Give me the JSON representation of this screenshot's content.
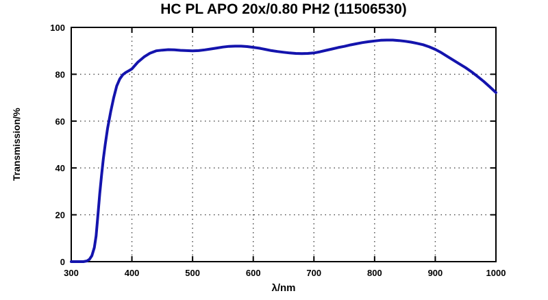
{
  "chart_data": {
    "type": "line",
    "title": "HC PL APO 20x/0.80 PH2 (11506530)",
    "xlabel": "λ/nm",
    "ylabel": "Transmission/%",
    "xlim": [
      300,
      1000
    ],
    "ylim": [
      0,
      100
    ],
    "x_ticks": [
      300,
      400,
      500,
      600,
      700,
      800,
      900,
      1000
    ],
    "y_ticks": [
      0,
      20,
      40,
      60,
      80,
      100
    ],
    "grid": "dotted",
    "legend": "none",
    "line_color": "#1414ad",
    "axis_color": "#000000",
    "grid_color": "#444444",
    "series": [
      {
        "name": "transmission",
        "points": [
          [
            300,
            0
          ],
          [
            310,
            0
          ],
          [
            320,
            0
          ],
          [
            326,
            0.3
          ],
          [
            330,
            1
          ],
          [
            334,
            2.5
          ],
          [
            338,
            6
          ],
          [
            341,
            11
          ],
          [
            344,
            20
          ],
          [
            347,
            29
          ],
          [
            350,
            37
          ],
          [
            353,
            44
          ],
          [
            356,
            50
          ],
          [
            360,
            57
          ],
          [
            365,
            64
          ],
          [
            370,
            70
          ],
          [
            375,
            75
          ],
          [
            380,
            78
          ],
          [
            385,
            79.8
          ],
          [
            390,
            80.8
          ],
          [
            395,
            81.5
          ],
          [
            400,
            82.3
          ],
          [
            410,
            85.2
          ],
          [
            420,
            87.4
          ],
          [
            430,
            89.0
          ],
          [
            440,
            90.0
          ],
          [
            450,
            90.3
          ],
          [
            460,
            90.5
          ],
          [
            470,
            90.4
          ],
          [
            480,
            90.2
          ],
          [
            490,
            90.1
          ],
          [
            500,
            90.0
          ],
          [
            510,
            90.1
          ],
          [
            520,
            90.4
          ],
          [
            530,
            90.8
          ],
          [
            540,
            91.2
          ],
          [
            550,
            91.6
          ],
          [
            560,
            91.9
          ],
          [
            570,
            92.0
          ],
          [
            580,
            92.0
          ],
          [
            590,
            91.8
          ],
          [
            600,
            91.5
          ],
          [
            610,
            91.1
          ],
          [
            620,
            90.6
          ],
          [
            630,
            90.1
          ],
          [
            640,
            89.7
          ],
          [
            650,
            89.4
          ],
          [
            660,
            89.1
          ],
          [
            670,
            88.9
          ],
          [
            680,
            88.8
          ],
          [
            690,
            88.9
          ],
          [
            700,
            89.1
          ],
          [
            710,
            89.6
          ],
          [
            720,
            90.2
          ],
          [
            730,
            90.8
          ],
          [
            740,
            91.4
          ],
          [
            750,
            91.9
          ],
          [
            760,
            92.5
          ],
          [
            770,
            93.0
          ],
          [
            780,
            93.5
          ],
          [
            790,
            93.9
          ],
          [
            800,
            94.2
          ],
          [
            810,
            94.5
          ],
          [
            820,
            94.6
          ],
          [
            830,
            94.6
          ],
          [
            840,
            94.4
          ],
          [
            850,
            94.1
          ],
          [
            860,
            93.7
          ],
          [
            870,
            93.2
          ],
          [
            880,
            92.6
          ],
          [
            890,
            91.7
          ],
          [
            900,
            90.6
          ],
          [
            910,
            89.2
          ],
          [
            920,
            87.6
          ],
          [
            930,
            86.0
          ],
          [
            940,
            84.4
          ],
          [
            950,
            82.8
          ],
          [
            960,
            81.0
          ],
          [
            970,
            79.0
          ],
          [
            980,
            76.9
          ],
          [
            990,
            74.6
          ],
          [
            1000,
            72.2
          ]
        ]
      }
    ]
  }
}
